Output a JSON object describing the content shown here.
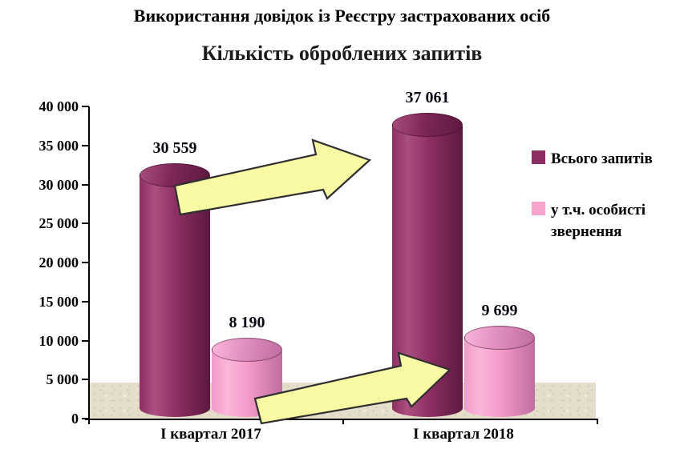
{
  "page": {
    "title": "Використання довідок із Реєстру застрахованих осіб",
    "subtitle": "Кількість оброблених запитів"
  },
  "chart_data": {
    "type": "bar",
    "style": "3d-cylinder",
    "title": "Використання довідок із Реєстру застрахованих осіб",
    "subtitle": "Кількість оброблених запитів",
    "categories": [
      "І квартал 2017",
      "І квартал 2018"
    ],
    "series": [
      {
        "name": "Всього запитів",
        "values": [
          30559,
          37061
        ],
        "labels": [
          "30 559",
          "37 061"
        ],
        "color": "#8e2f63",
        "color_light": "#aa4f80",
        "color_dark": "#5c193f",
        "top_color": "#7e2757"
      },
      {
        "name": "у т.ч. особисті звернення",
        "values": [
          8190,
          9699
        ],
        "labels": [
          "8 190",
          "9 699"
        ],
        "color": "#f49ac9",
        "color_light": "#fbb6da",
        "color_dark": "#c06d9f",
        "top_color": "#e18fc0"
      }
    ],
    "xlabel": "",
    "ylabel": "",
    "ylim": [
      0,
      40000
    ],
    "ytick_step": 5000,
    "yticks": [
      "0",
      "5 000",
      "10 000",
      "15 000",
      "20 000",
      "25 000",
      "30 000",
      "35 000",
      "40 000"
    ],
    "grid": false,
    "legend_position": "right",
    "annotations": [
      "yellow block arrow from 2017 total bar up to 2018 total bar",
      "yellow block arrow from 2017 personal bar up to 2018 personal bar"
    ]
  },
  "legend": {
    "items": [
      {
        "label": "Всього запитів",
        "color": "#8e2f63"
      },
      {
        "label": "у т.ч. особисті звернення",
        "color": "#f9a3cf"
      }
    ]
  },
  "colors": {
    "arrow_fill": "#fafaa5",
    "arrow_stroke": "#2f2f2f",
    "floor": "#e5decd",
    "axis": "#000000",
    "text": "#000000"
  }
}
